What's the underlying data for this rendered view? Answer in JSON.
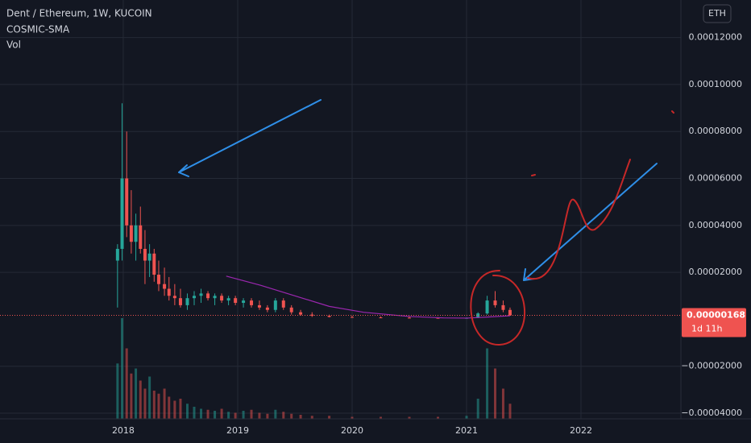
{
  "header": {
    "symbol": "Dent / Ethereum, 1W, KUCOIN",
    "indicator": "COSMIC-SMA",
    "volume": "Vol",
    "currency": "ETH"
  },
  "chart_data": {
    "type": "candlestick",
    "x": [
      2017.95,
      2017.99,
      2018.03,
      2018.07,
      2018.11,
      2018.15,
      2018.19,
      2018.23,
      2018.27,
      2018.31,
      2018.36,
      2018.4,
      2018.45,
      2018.5,
      2018.56,
      2018.62,
      2018.68,
      2018.74,
      2018.8,
      2018.86,
      2018.92,
      2018.98,
      2019.05,
      2019.12,
      2019.19,
      2019.26,
      2019.33,
      2019.4,
      2019.47,
      2019.55,
      2019.65,
      2019.8,
      2020.0,
      2020.25,
      2020.5,
      2020.75,
      2021.0,
      2021.1,
      2021.18,
      2021.25,
      2021.32,
      2021.38
    ],
    "open": [
      2.5e-05,
      3e-05,
      6e-05,
      4e-05,
      3.3e-05,
      4e-05,
      3e-05,
      2.5e-05,
      2.8e-05,
      1.9e-05,
      1.5e-05,
      1.3e-05,
      1e-05,
      9e-06,
      6e-06,
      9e-06,
      1e-05,
      1.1e-05,
      9e-06,
      1e-05,
      8e-06,
      9e-06,
      7e-06,
      8e-06,
      6e-06,
      5e-06,
      4e-06,
      8e-06,
      5e-06,
      3e-06,
      2e-06,
      1.5e-06,
      1e-06,
      8e-07,
      7e-07,
      6e-07,
      5e-07,
      6e-07,
      2.5e-06,
      8e-06,
      6e-06,
      4e-06
    ],
    "high": [
      3.2e-05,
      9.2e-05,
      8e-05,
      5.5e-05,
      4.5e-05,
      4.8e-05,
      3.8e-05,
      3.2e-05,
      3e-05,
      2.5e-05,
      2.2e-05,
      1.8e-05,
      1.5e-05,
      1.3e-05,
      1.1e-05,
      1.2e-05,
      1.3e-05,
      1.2e-05,
      1.1e-05,
      1.1e-05,
      1e-05,
      1e-05,
      9e-06,
      9e-06,
      8e-06,
      6e-06,
      9e-06,
      9e-06,
      6e-06,
      4e-06,
      3e-06,
      2e-06,
      1.5e-06,
      1.2e-06,
      1e-06,
      9e-07,
      8e-07,
      3e-06,
      1e-05,
      1.2e-05,
      8e-06,
      5e-06
    ],
    "low": [
      5e-06,
      2.5e-05,
      3.5e-05,
      2.8e-05,
      2.5e-05,
      2.8e-05,
      1.5e-05,
      1.8e-05,
      1.6e-05,
      1.2e-05,
      1e-05,
      8e-06,
      6e-06,
      5e-06,
      4e-06,
      6e-06,
      7e-06,
      8e-06,
      6e-06,
      7e-06,
      6e-06,
      6e-06,
      5e-06,
      5e-06,
      4e-06,
      3e-06,
      3e-06,
      4e-06,
      2e-06,
      1.5e-06,
      1e-06,
      8e-07,
      6e-07,
      5e-07,
      4e-07,
      4e-07,
      3e-07,
      5e-07,
      2e-06,
      5e-06,
      3e-06,
      1.5e-06
    ],
    "close": [
      3e-05,
      6e-05,
      4e-05,
      3.3e-05,
      4e-05,
      3e-05,
      2.5e-05,
      2.8e-05,
      1.9e-05,
      1.5e-05,
      1.3e-05,
      1e-05,
      9e-06,
      6e-06,
      9e-06,
      1e-05,
      1.1e-05,
      9e-06,
      1e-05,
      8e-06,
      9e-06,
      7e-06,
      8e-06,
      6e-06,
      5e-06,
      4e-06,
      8e-06,
      5e-06,
      3e-06,
      2e-06,
      1.5e-06,
      1e-06,
      8e-07,
      7e-07,
      6e-07,
      5e-07,
      6e-07,
      2.5e-06,
      8e-06,
      6e-06,
      4e-06,
      1.68e-06
    ],
    "volume": [
      55,
      100,
      70,
      45,
      50,
      38,
      30,
      42,
      28,
      25,
      30,
      22,
      18,
      20,
      15,
      12,
      10,
      9,
      8,
      10,
      7,
      6,
      8,
      9,
      6,
      5,
      9,
      7,
      5,
      4,
      3,
      3,
      2,
      2,
      2,
      2,
      3,
      20,
      70,
      50,
      30,
      15
    ],
    "vol_ylim": [
      0,
      100
    ],
    "sma": {
      "color": "#9c27b0",
      "x": [
        2018.9,
        2019.2,
        2019.5,
        2019.8,
        2020.1,
        2020.5,
        2020.8,
        2021.0,
        2021.2,
        2021.38
      ],
      "values": [
        1.84e-05,
        1.45e-05,
        1e-05,
        5.5e-06,
        3e-06,
        1.2e-06,
        6e-07,
        5e-07,
        1e-06,
        1.5e-06
      ]
    },
    "up_color": "#26a69a",
    "down_color": "#ef5350",
    "last_price": {
      "value": 1.68e-06,
      "label": "0.00000168"
    },
    "countdown": "1d 11h",
    "xlim": [
      2016.923,
      2022.873
    ],
    "xticks": [
      {
        "value": 2018,
        "label": "2018"
      },
      {
        "value": 2019,
        "label": "2019"
      },
      {
        "value": 2020,
        "label": "2020"
      },
      {
        "value": 2021,
        "label": "2021"
      },
      {
        "value": 2022,
        "label": "2022"
      }
    ],
    "ylim": [
      -4.24e-05,
      0.000136
    ],
    "yticks": [
      {
        "value": 0.00012,
        "label": "0.00012000"
      },
      {
        "value": 0.0001,
        "label": "0.00010000"
      },
      {
        "value": 8e-05,
        "label": "0.00008000"
      },
      {
        "value": 6e-05,
        "label": "0.00006000"
      },
      {
        "value": 4e-05,
        "label": "0.00004000"
      },
      {
        "value": 2e-05,
        "label": "0.00002000"
      },
      {
        "value": -2e-05,
        "label": "−0.00002000"
      },
      {
        "value": -4e-05,
        "label": "−0.00004000"
      }
    ],
    "grid": true
  }
}
